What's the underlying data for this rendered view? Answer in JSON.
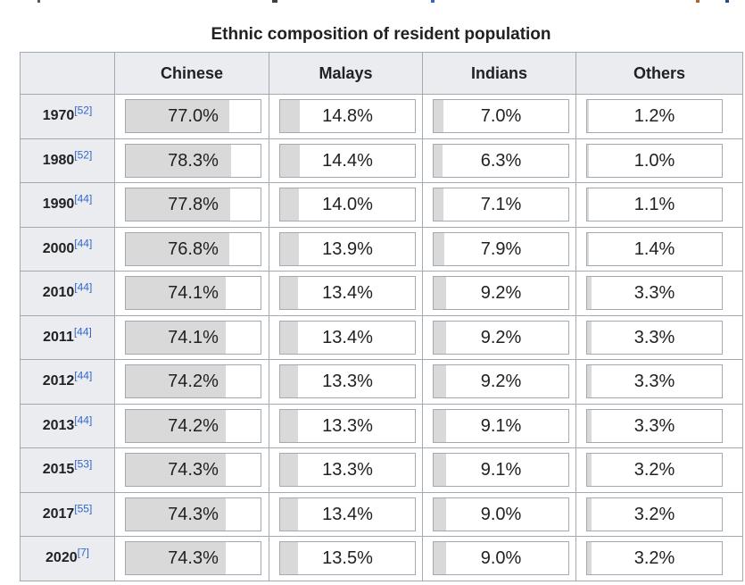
{
  "title": "Ethnic composition of resident population",
  "table": {
    "columns": [
      "Chinese",
      "Malays",
      "Indians",
      "Others"
    ],
    "rows": [
      {
        "year": "1970",
        "ref": "[52]",
        "values": [
          "77.0%",
          "14.8%",
          "7.0%",
          "1.2%"
        ],
        "pcts": [
          77.0,
          14.8,
          7.0,
          1.2
        ]
      },
      {
        "year": "1980",
        "ref": "[52]",
        "values": [
          "78.3%",
          "14.4%",
          "6.3%",
          "1.0%"
        ],
        "pcts": [
          78.3,
          14.4,
          6.3,
          1.0
        ]
      },
      {
        "year": "1990",
        "ref": "[44]",
        "values": [
          "77.8%",
          "14.0%",
          "7.1%",
          "1.1%"
        ],
        "pcts": [
          77.8,
          14.0,
          7.1,
          1.1
        ]
      },
      {
        "year": "2000",
        "ref": "[44]",
        "values": [
          "76.8%",
          "13.9%",
          "7.9%",
          "1.4%"
        ],
        "pcts": [
          76.8,
          13.9,
          7.9,
          1.4
        ]
      },
      {
        "year": "2010",
        "ref": "[44]",
        "values": [
          "74.1%",
          "13.4%",
          "9.2%",
          "3.3%"
        ],
        "pcts": [
          74.1,
          13.4,
          9.2,
          3.3
        ]
      },
      {
        "year": "2011",
        "ref": "[44]",
        "values": [
          "74.1%",
          "13.4%",
          "9.2%",
          "3.3%"
        ],
        "pcts": [
          74.1,
          13.4,
          9.2,
          3.3
        ]
      },
      {
        "year": "2012",
        "ref": "[44]",
        "values": [
          "74.2%",
          "13.3%",
          "9.2%",
          "3.3%"
        ],
        "pcts": [
          74.2,
          13.3,
          9.2,
          3.3
        ]
      },
      {
        "year": "2013",
        "ref": "[44]",
        "values": [
          "74.2%",
          "13.3%",
          "9.1%",
          "3.3%"
        ],
        "pcts": [
          74.2,
          13.3,
          9.1,
          3.3
        ]
      },
      {
        "year": "2015",
        "ref": "[53]",
        "values": [
          "74.3%",
          "13.3%",
          "9.1%",
          "3.2%"
        ],
        "pcts": [
          74.3,
          13.3,
          9.1,
          3.2
        ]
      },
      {
        "year": "2017",
        "ref": "[55]",
        "values": [
          "74.3%",
          "13.4%",
          "9.0%",
          "3.2%"
        ],
        "pcts": [
          74.3,
          13.4,
          9.0,
          3.2
        ]
      },
      {
        "year": "2020",
        "ref": "[7]",
        "values": [
          "74.3%",
          "13.5%",
          "9.0%",
          "3.2%"
        ],
        "pcts": [
          74.3,
          13.5,
          9.0,
          3.2
        ]
      }
    ]
  },
  "chart_data": {
    "type": "table",
    "title": "Ethnic composition of resident population",
    "categories": [
      "1970",
      "1980",
      "1990",
      "2000",
      "2010",
      "2011",
      "2012",
      "2013",
      "2015",
      "2017",
      "2020"
    ],
    "series": [
      {
        "name": "Chinese",
        "values": [
          77.0,
          78.3,
          77.8,
          76.8,
          74.1,
          74.1,
          74.2,
          74.2,
          74.3,
          74.3,
          74.3
        ]
      },
      {
        "name": "Malays",
        "values": [
          14.8,
          14.4,
          14.0,
          13.9,
          13.4,
          13.4,
          13.3,
          13.3,
          13.3,
          13.4,
          13.5
        ]
      },
      {
        "name": "Indians",
        "values": [
          7.0,
          6.3,
          7.1,
          7.9,
          9.2,
          9.2,
          9.2,
          9.1,
          9.1,
          9.0,
          9.0
        ]
      },
      {
        "name": "Others",
        "values": [
          1.2,
          1.0,
          1.1,
          1.4,
          3.3,
          3.3,
          3.3,
          3.3,
          3.2,
          3.2,
          3.2
        ]
      }
    ],
    "unit": "%",
    "citations_per_row": [
      "[52]",
      "[52]",
      "[44]",
      "[44]",
      "[44]",
      "[44]",
      "[44]",
      "[44]",
      "[53]",
      "[55]",
      "[7]"
    ],
    "layout": "rows are years, columns are ethnic groups, each cell shows a horizontal meter bar filled to the percentage value"
  },
  "colors": {
    "table_border": "#a2a9b1",
    "header_bg": "#eaecf0",
    "meter_fill": "#d9d9d9",
    "meter_border": "#a2a9b1",
    "text": "#202122",
    "citation_link": "#3366cc"
  }
}
